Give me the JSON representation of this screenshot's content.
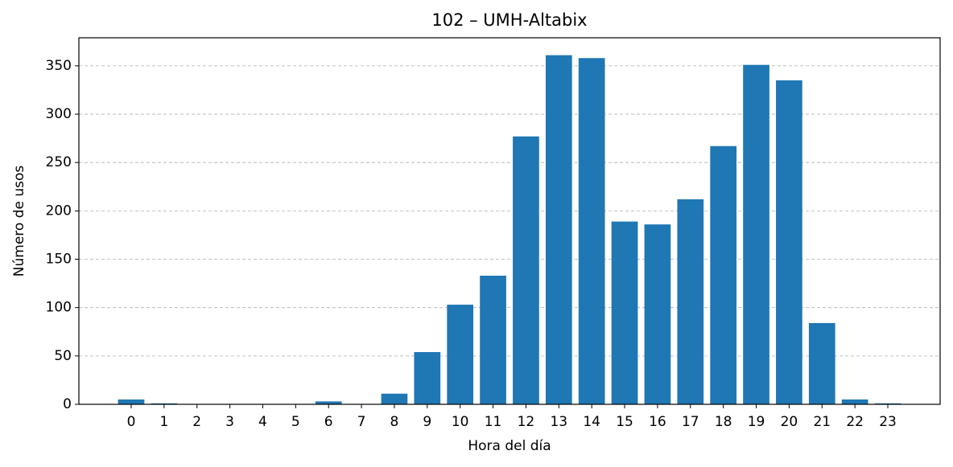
{
  "chart_data": {
    "type": "bar",
    "title": "102 – UMH-Altabix",
    "x_label": "Hora del día",
    "y_label": "Número de usos",
    "x": [
      0,
      1,
      2,
      3,
      4,
      5,
      6,
      7,
      8,
      9,
      10,
      11,
      12,
      13,
      14,
      15,
      16,
      17,
      18,
      19,
      20,
      21,
      22,
      23
    ],
    "values": [
      5,
      1,
      0,
      0,
      0,
      0,
      3,
      0,
      11,
      54,
      103,
      133,
      277,
      361,
      358,
      189,
      186,
      212,
      267,
      351,
      335,
      84,
      5,
      1
    ],
    "color": "#1f77b4",
    "xlim": [
      -1.59,
      24.59
    ],
    "xticks": [
      0,
      1,
      2,
      3,
      4,
      5,
      6,
      7,
      8,
      9,
      10,
      11,
      12,
      13,
      14,
      15,
      16,
      17,
      18,
      19,
      20,
      21,
      22,
      23
    ],
    "ylim": [
      0,
      379
    ],
    "yticks": [
      0,
      50,
      100,
      150,
      200,
      250,
      300,
      350
    ],
    "grid": true
  }
}
